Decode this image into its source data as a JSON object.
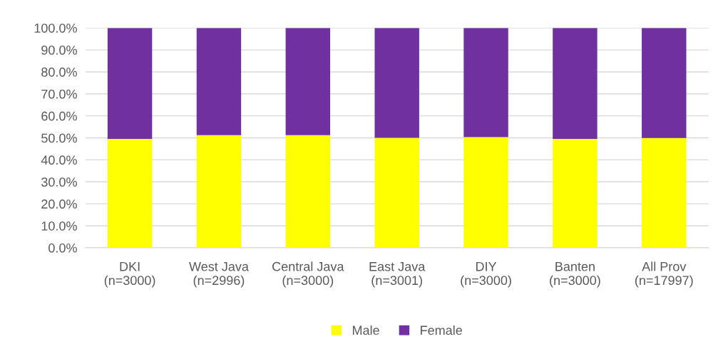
{
  "chart_data": {
    "type": "bar",
    "stacked": true,
    "categories": [
      "DKI\n(n=3000)",
      "West Java\n(n=2996)",
      "Central Java\n(n=3000)",
      "East Java\n(n=3001)",
      "DIY\n(n=3000)",
      "Banten\n(n=3000)",
      "All Prov\n(n=17997)"
    ],
    "series": [
      {
        "name": "Male",
        "color": "#ffff00",
        "values": [
          49.5,
          51.2,
          51.2,
          50.0,
          50.3,
          49.5,
          49.9
        ]
      },
      {
        "name": "Female",
        "color": "#7030a0",
        "values": [
          50.5,
          48.8,
          48.8,
          50.0,
          49.7,
          50.5,
          50.1
        ]
      }
    ],
    "ylim": [
      0,
      100
    ],
    "yticks": [
      {
        "value": 0,
        "label": "0.0%"
      },
      {
        "value": 10,
        "label": "10.0%"
      },
      {
        "value": 20,
        "label": "20.0%"
      },
      {
        "value": 30,
        "label": "30.0%"
      },
      {
        "value": 40,
        "label": "40.0%"
      },
      {
        "value": 50,
        "label": "50.0%"
      },
      {
        "value": 60,
        "label": "60.0%"
      },
      {
        "value": 70,
        "label": "70.0%"
      },
      {
        "value": 80,
        "label": "80.0%"
      },
      {
        "value": 90,
        "label": "90.0%"
      },
      {
        "value": 100,
        "label": "100.0%"
      }
    ],
    "grid": "y",
    "legend": "bottom"
  }
}
